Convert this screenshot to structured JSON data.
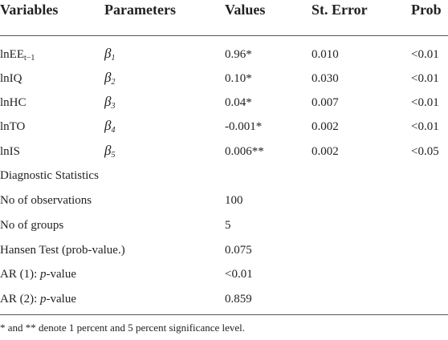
{
  "table": {
    "header": [
      "Variables",
      "Parameters",
      "Values",
      "St. Error",
      "Prob"
    ],
    "rows": [
      {
        "variable": "lnEE",
        "variable_sub": "t−1",
        "parameter": "β",
        "parameter_sub": "1",
        "value": "0.96*",
        "st_error": "0.010",
        "prob": "<0.01"
      },
      {
        "variable": "lnIQ",
        "parameter": "β",
        "parameter_sub": "2",
        "value": "0.10*",
        "st_error": "0.030",
        "prob": "<0.01"
      },
      {
        "variable": "lnHC",
        "parameter": "β",
        "parameter_sub": "3",
        "value": "0.04*",
        "st_error": "0.007",
        "prob": "<0.01"
      },
      {
        "variable": "lnTO",
        "parameter": "β",
        "parameter_sub": "4",
        "value": "-0.001*",
        "st_error": "0.002",
        "prob": "<0.01"
      },
      {
        "variable": "lnIS",
        "parameter": "β",
        "parameter_sub": "5",
        "value": "0.006**",
        "st_error": "0.002",
        "prob": "<0.05"
      }
    ],
    "diagnostics": {
      "title": "Diagnostic Statistics",
      "rows": [
        {
          "label": [
            "No of observations"
          ],
          "value": "100"
        },
        {
          "label": [
            "No of groups"
          ],
          "value": "5"
        },
        {
          "label": [
            "Hansen Test (prob-value.)"
          ],
          "value": "0.075"
        },
        {
          "label": [
            "AR (1): ",
            "p",
            "-value"
          ],
          "value": "<0.01"
        },
        {
          "label": [
            "AR (2): ",
            "p",
            "-value"
          ],
          "value": "0.859"
        }
      ]
    }
  },
  "footnote": "* and ** denote 1 percent and 5 percent significance level."
}
